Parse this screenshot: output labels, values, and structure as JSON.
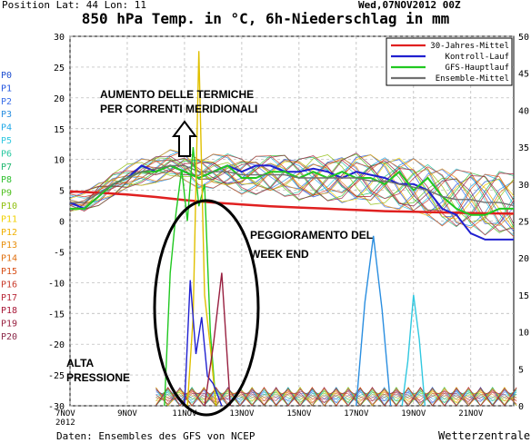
{
  "header": {
    "position": "Position   Lat: 44 Lon: 11",
    "date": "Wed,07NOV2012 00Z"
  },
  "footer": {
    "source": "Daten: Ensembles des GFS von NCEP",
    "site": "Wetterzentrale"
  },
  "members": [
    "P0",
    "P1",
    "P2",
    "P3",
    "P4",
    "P5",
    "P6",
    "P7",
    "P8",
    "P9",
    "P10",
    "P11",
    "P12",
    "P13",
    "P14",
    "P15",
    "P16",
    "P17",
    "P18",
    "P19",
    "P20"
  ],
  "member_colors": [
    "#1f4fd0",
    "#2255e0",
    "#3a6ee8",
    "#2a8ee0",
    "#20a8e8",
    "#30c8e0",
    "#28c8a0",
    "#20b870",
    "#30c030",
    "#50c020",
    "#90c010",
    "#f0d000",
    "#f0b000",
    "#e89010",
    "#e07010",
    "#d85018",
    "#c83828",
    "#b82838",
    "#a81838",
    "#982040",
    "#8a2848"
  ],
  "annotations": {
    "termiche_1": "AUMENTO DELLE TERMICHE",
    "termiche_2": "PER CORRENTI MERIDIONALI",
    "peggioramento_1": "PEGGIORAMENTO DEL",
    "peggioramento_2": "WEEK END",
    "alta_1": "ALTA",
    "alta_2": "PRESSIONE"
  },
  "colors": {
    "mittel_30": "#e02020",
    "kontroll": "#2020d0",
    "gfs": "#20c820",
    "ensemble": "#707070",
    "grid": "#b0b0b0"
  },
  "chart_data": {
    "type": "line",
    "title": "850 hPa Temp. in °C, 6h-Niederschlag in mm",
    "x_ticks": [
      "7NOV\n2012",
      "9NOV",
      "11NOV",
      "13NOV",
      "15NOV",
      "17NOV",
      "19NOV",
      "21NOV"
    ],
    "x_tick_days": [
      7,
      9,
      11,
      13,
      15,
      17,
      19,
      21
    ],
    "xlim": [
      7,
      22.5
    ],
    "y_left": {
      "label": "",
      "ticks": [
        30,
        25,
        20,
        15,
        10,
        5,
        0,
        -5,
        -10,
        -15,
        -20,
        -25,
        -30
      ],
      "ylim": [
        -30,
        30
      ]
    },
    "y_right": {
      "label": "",
      "ticks": [
        50,
        45,
        40,
        35,
        30,
        25,
        20,
        15,
        10,
        5,
        0
      ],
      "ylim": [
        0,
        50
      ]
    },
    "legend": [
      "30-Jahres-Mittel",
      "Kontroll-Lauf",
      "GFS-Hauptlauf",
      "Ensemble-Mittel"
    ],
    "legend_position": "top-right",
    "series": [
      {
        "name": "30-Jahres-Mittel",
        "axis": "left",
        "color": "#e02020",
        "x": [
          7,
          8,
          9,
          10,
          11,
          12,
          13,
          14,
          15,
          16,
          17,
          18,
          19,
          20,
          21,
          22.5
        ],
        "y": [
          4.8,
          4.6,
          4.3,
          3.9,
          3.4,
          3.0,
          2.7,
          2.4,
          2.2,
          2.0,
          1.8,
          1.6,
          1.5,
          1.4,
          1.3,
          1.2
        ]
      },
      {
        "name": "Kontroll-Lauf",
        "axis": "left",
        "color": "#2020d0",
        "x": [
          7,
          7.5,
          8,
          8.5,
          9,
          9.5,
          10,
          10.5,
          11,
          11.5,
          12,
          12.5,
          13,
          13.5,
          14,
          14.5,
          15,
          15.5,
          16,
          16.5,
          17,
          17.5,
          18,
          18.5,
          19,
          19.5,
          20,
          20.5,
          21,
          21.5,
          22,
          22.5
        ],
        "y": [
          3,
          2,
          4,
          6,
          7,
          9,
          8,
          9,
          8,
          7,
          8,
          9,
          8,
          9,
          9,
          8,
          8,
          8.5,
          8,
          7,
          8,
          7.5,
          7,
          6,
          6,
          5,
          2,
          1,
          -2,
          -3,
          -3,
          -3
        ]
      },
      {
        "name": "GFS-Hauptlauf",
        "axis": "left",
        "color": "#20c820",
        "x": [
          7,
          7.5,
          8,
          8.5,
          9,
          9.5,
          10,
          10.5,
          11,
          11.5,
          12,
          12.5,
          13,
          13.5,
          14,
          14.5,
          15,
          15.5,
          16,
          16.5,
          17,
          17.5,
          18,
          18.5,
          19,
          19.5,
          20,
          20.5,
          21,
          21.5,
          22,
          22.5
        ],
        "y": [
          2,
          2,
          4,
          6,
          7,
          8,
          8,
          9,
          8,
          7,
          8,
          9,
          7,
          7,
          8,
          8,
          7,
          8,
          7,
          8,
          7,
          7,
          6,
          8,
          5,
          7,
          4,
          2,
          1,
          1,
          2,
          2
        ]
      },
      {
        "name": "Ensemble-Mittel",
        "axis": "left",
        "color": "#707070",
        "x": [
          7,
          7.5,
          8,
          8.5,
          9,
          9.5,
          10,
          10.5,
          11,
          11.5,
          12,
          12.5,
          13,
          13.5,
          14,
          14.5,
          15,
          15.5,
          16,
          16.5,
          17,
          17.5,
          18,
          18.5,
          19,
          19.5,
          20,
          20.5,
          21,
          21.5,
          22,
          22.5
        ],
        "y": [
          3,
          3,
          4.5,
          6,
          7,
          8,
          8.5,
          9,
          9,
          8,
          8,
          8,
          7.5,
          7.5,
          7.5,
          7.5,
          7,
          7,
          7,
          7,
          7,
          6.5,
          6.5,
          6,
          5.5,
          5,
          4,
          3.5,
          3.5,
          3,
          3,
          2.5
        ]
      },
      {
        "name": "",
        "axis": "right",
        "color": "#20c820",
        "x": [
          10.3,
          10.5,
          10.7,
          10.9,
          11.1,
          11.3,
          11.5,
          11.7,
          11.9,
          12.1
        ],
        "y": [
          0,
          18,
          26,
          32,
          25,
          35,
          27,
          30,
          10,
          0
        ]
      },
      {
        "name": "",
        "axis": "right",
        "color": "#e0c000",
        "x": [
          11.1,
          11.3,
          11.5,
          11.7,
          11.9,
          12.1
        ],
        "y": [
          0,
          12,
          48,
          15,
          8,
          0
        ]
      },
      {
        "name": "",
        "axis": "right",
        "color": "#2020d0",
        "x": [
          11.0,
          11.2,
          11.4,
          11.6,
          11.8,
          12.0,
          12.3
        ],
        "y": [
          0,
          17,
          7,
          12,
          4,
          3,
          0
        ]
      },
      {
        "name": "",
        "axis": "right",
        "color": "#982040",
        "x": [
          11.7,
          12.0,
          12.3,
          12.6
        ],
        "y": [
          0,
          8,
          18,
          0
        ]
      },
      {
        "name": "",
        "axis": "right",
        "color": "#2a8ee0",
        "x": [
          17.0,
          17.3,
          17.6,
          17.9,
          18.2
        ],
        "y": [
          0,
          14,
          23,
          13,
          0
        ]
      },
      {
        "name": "",
        "axis": "right",
        "color": "#30c8e0",
        "x": [
          18.6,
          18.8,
          19.0,
          19.2,
          19.4
        ],
        "y": [
          0,
          6,
          15,
          9,
          0
        ]
      }
    ]
  }
}
